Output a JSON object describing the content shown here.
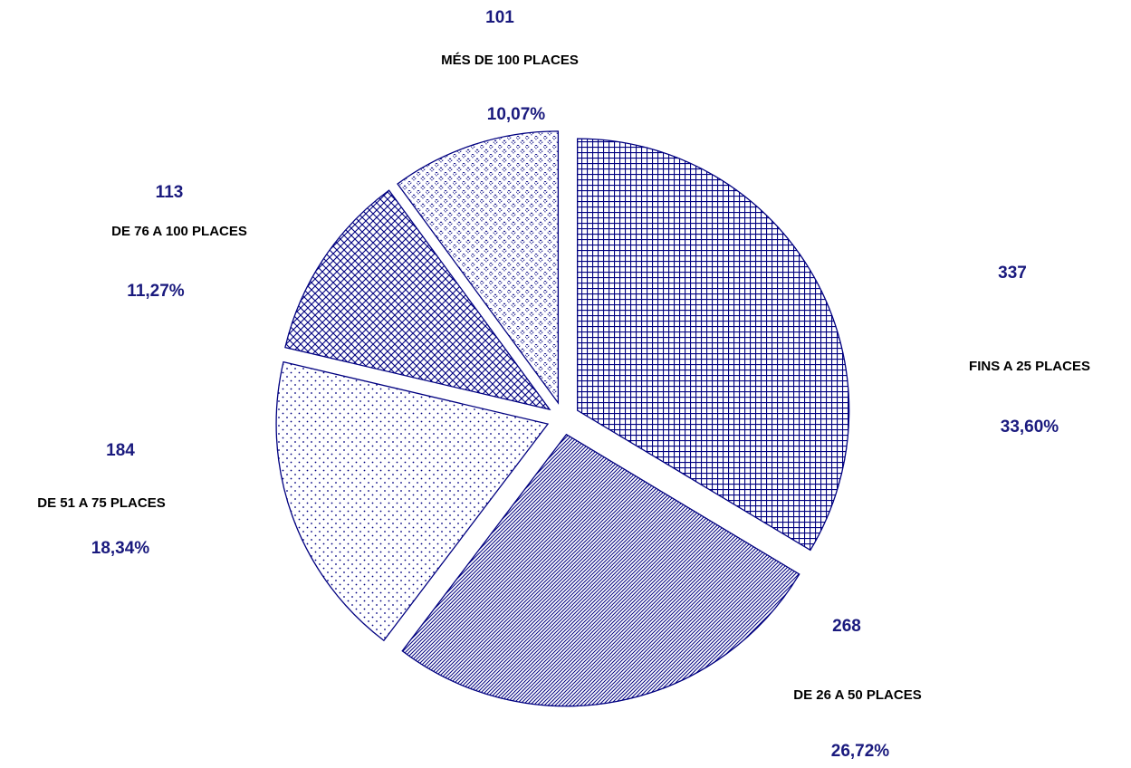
{
  "chart_data": {
    "type": "pie",
    "categories": [
      "FINS A 25 PLACES",
      "DE 26 A 50 PLACES",
      "DE 51 A 75 PLACES",
      "DE 76 A 100 PLACES",
      "MÉS DE 100 PLACES"
    ],
    "values": [
      337,
      268,
      184,
      113,
      101
    ],
    "percent_labels": [
      "33,60%",
      "26,72%",
      "18,34%",
      "11,27%",
      "10,07%"
    ],
    "color": "#000080"
  }
}
